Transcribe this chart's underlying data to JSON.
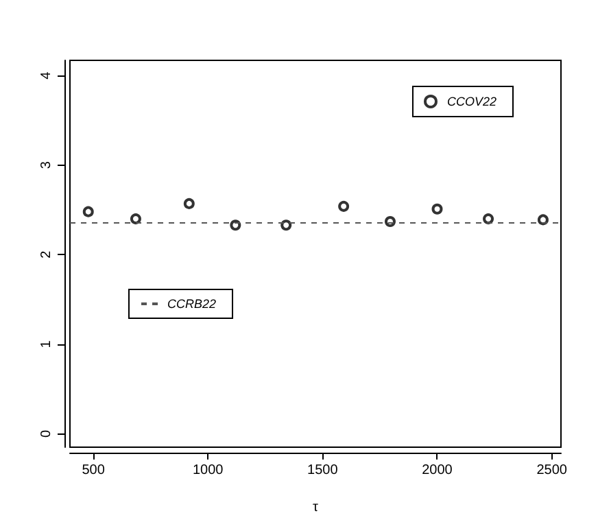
{
  "chart_data": {
    "type": "scatter",
    "xlabel": "τ",
    "x": [
      478,
      685,
      918,
      1120,
      1341,
      1592,
      1795,
      2000,
      2223,
      2462
    ],
    "series": [
      {
        "name": "CCOV22",
        "color": "#000000",
        "values": [
          2.48,
          2.4,
          2.57,
          2.33,
          2.33,
          2.54,
          2.37,
          2.51,
          2.4,
          2.39
        ]
      }
    ],
    "xlim": [
      398,
      2540
    ],
    "xticks": [
      500,
      1000,
      1500,
      2000,
      2500
    ],
    "ylim": [
      -0.15,
      4.17
    ],
    "yticks": [
      0,
      1,
      2,
      3,
      4
    ],
    "ref_lines": [
      {
        "axis": "y",
        "value": 2.36,
        "label": "CCRB22",
        "color": "#555555",
        "line_style": "dashed"
      }
    ],
    "marker": "circle",
    "grid": false,
    "legend": "top right"
  }
}
